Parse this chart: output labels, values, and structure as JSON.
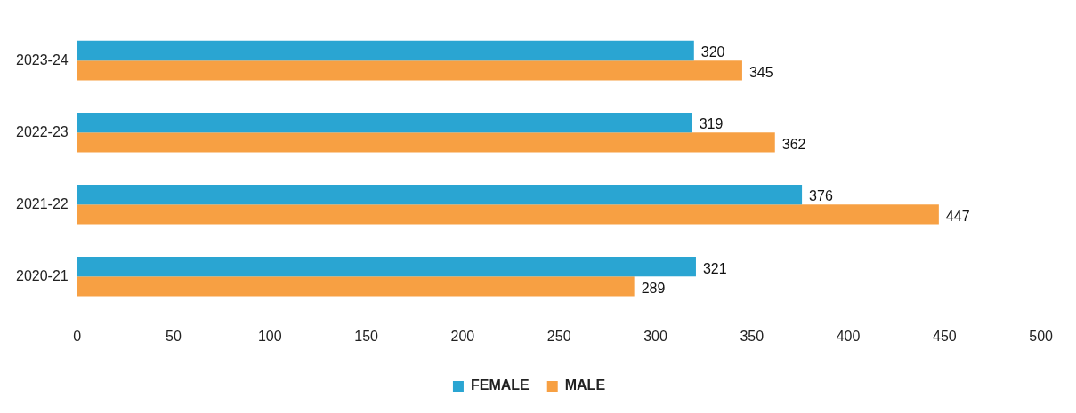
{
  "chart_data": {
    "type": "bar",
    "orientation": "horizontal",
    "categories": [
      "2023-24",
      "2022-23",
      "2021-22",
      "2020-21"
    ],
    "series": [
      {
        "name": "FEMALE",
        "color": "#2aa5d2",
        "values": [
          320,
          319,
          376,
          321
        ]
      },
      {
        "name": "MALE",
        "color": "#f7a043",
        "values": [
          345,
          362,
          447,
          289
        ]
      }
    ],
    "xlim": [
      0,
      500
    ],
    "xticks": [
      0,
      50,
      100,
      150,
      200,
      250,
      300,
      350,
      400,
      450,
      500
    ],
    "grid": false,
    "legend": "bottom",
    "data_labels": true
  }
}
